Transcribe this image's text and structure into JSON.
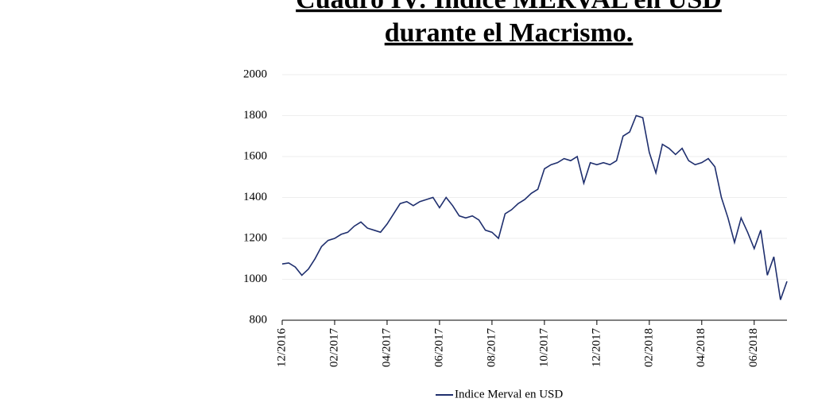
{
  "chart_data": {
    "type": "line",
    "title": [
      "Cuadro IV: Indice MERVAL en USD",
      "durante el Macrismo."
    ],
    "series": [
      {
        "name": "Indice Merval en USD",
        "color": "#1f2f6e",
        "values": [
          1075,
          1080,
          1060,
          1020,
          1050,
          1100,
          1160,
          1190,
          1200,
          1220,
          1230,
          1260,
          1280,
          1250,
          1240,
          1230,
          1270,
          1320,
          1370,
          1380,
          1360,
          1380,
          1390,
          1400,
          1350,
          1400,
          1360,
          1310,
          1300,
          1310,
          1290,
          1240,
          1230,
          1200,
          1320,
          1340,
          1370,
          1390,
          1420,
          1440,
          1540,
          1560,
          1570,
          1590,
          1580,
          1600,
          1470,
          1570,
          1560,
          1570,
          1560,
          1580,
          1700,
          1720,
          1800,
          1790,
          1620,
          1520,
          1660,
          1640,
          1610,
          1640,
          1580,
          1560,
          1570,
          1590,
          1550,
          1400,
          1300,
          1180,
          1300,
          1230,
          1150,
          1240,
          1020,
          1110,
          900,
          990
        ]
      }
    ],
    "xlim": [
      0,
      77
    ],
    "xticks": [
      {
        "value": 0,
        "label": "12/2016"
      },
      {
        "value": 8,
        "label": "02/2017"
      },
      {
        "value": 16,
        "label": "04/2017"
      },
      {
        "value": 24,
        "label": "06/2017"
      },
      {
        "value": 32,
        "label": "08/2017"
      },
      {
        "value": 40,
        "label": "10/2017"
      },
      {
        "value": 48,
        "label": "12/2017"
      },
      {
        "value": 56,
        "label": "02/2018"
      },
      {
        "value": 64,
        "label": "04/2018"
      },
      {
        "value": 72,
        "label": "06/2018"
      }
    ],
    "ylim": [
      800,
      2000
    ],
    "yticks": [
      800,
      1000,
      1200,
      1400,
      1600,
      1800,
      2000
    ],
    "grid": true
  }
}
